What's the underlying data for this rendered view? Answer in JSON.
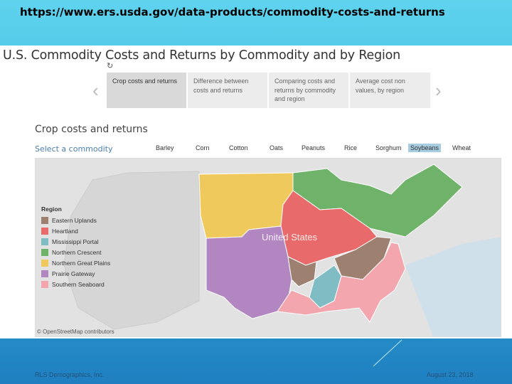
{
  "slide": {
    "url": "https://www.ers.usda.gov/data-products/commodity-costs-and-returns",
    "footer_left": "RLS Demographics, Inc.",
    "footer_right": "August 23, 2018"
  },
  "dashboard": {
    "title": "U.S. Commodity Costs and Returns by Commodity and by Region",
    "tabs": [
      {
        "label": "Crop costs and returns",
        "active": true
      },
      {
        "label": "Difference between costs and returns",
        "active": false
      },
      {
        "label": "Comparing costs and returns by commodity and region",
        "active": false
      },
      {
        "label": "Average cost non values, by region",
        "active": false
      }
    ],
    "section_title": "Crop costs and returns",
    "select_label": "Select a commodity",
    "commodities": [
      "Barley",
      "Corn",
      "Cotton",
      "Oats",
      "Peanuts",
      "Rice",
      "Sorghum",
      "Soybeans",
      "Wheat"
    ],
    "selected_commodity": "Soybeans"
  },
  "map": {
    "legend_title": "Region",
    "regions": [
      {
        "name": "Eastern Uplands",
        "color": "#9e8070"
      },
      {
        "name": "Heartland",
        "color": "#e86a6a"
      },
      {
        "name": "Mississippi Portal",
        "color": "#7fbcc4"
      },
      {
        "name": "Northern Crescent",
        "color": "#6fb36a"
      },
      {
        "name": "Northern Great Plains",
        "color": "#f0c95c"
      },
      {
        "name": "Prairie Gateway",
        "color": "#b286c0"
      },
      {
        "name": "Southern Seaboard",
        "color": "#f4a6ae"
      }
    ],
    "map_label": "United States",
    "attribution": "© OpenStreetMap contributors"
  }
}
